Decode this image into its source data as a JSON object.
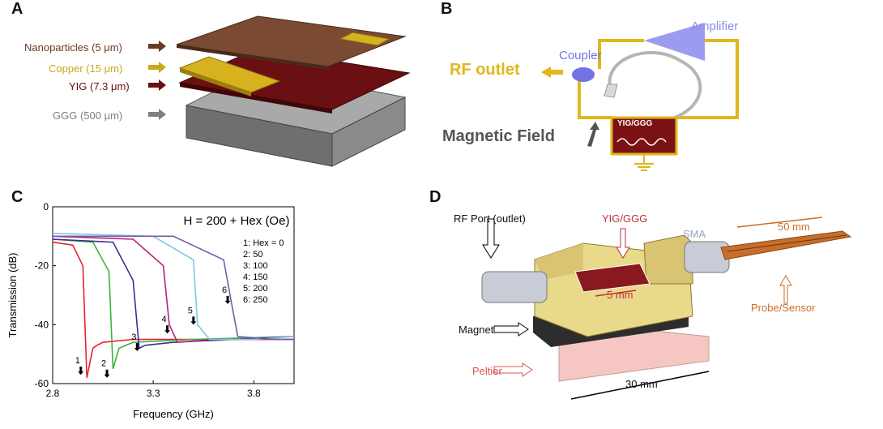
{
  "panels": {
    "a": {
      "label": "A"
    },
    "b": {
      "label": "B"
    },
    "c": {
      "label": "C"
    },
    "d": {
      "label": "D"
    }
  },
  "panel_a": {
    "layers": [
      {
        "text": "Nanoparticles (5 μm)",
        "color": "#6b3a24"
      },
      {
        "text": "Copper (15 μm)",
        "color": "#c9a81c"
      },
      {
        "text": "YIG (7.3 μm)",
        "color": "#6a0f12"
      },
      {
        "text": "GGG (500 μm)",
        "color": "#7f7f7f"
      }
    ]
  },
  "panel_b": {
    "amplifier": "Amplifier",
    "coupler": "Coupler",
    "rf_outlet": "RF outlet",
    "magnetic_field": "Magnetic Field",
    "yig_ggg": "YIG/GGG"
  },
  "panel_d": {
    "rf_port": "RF Port (outlet)",
    "yig_ggg": "YIG/GGG",
    "sma": "SMA",
    "length_50": "50 mm",
    "length_5": "5 mm",
    "length_30": "30 mm",
    "magnet": "Magnet",
    "peltier": "Peltier",
    "probe": "Probe/Sensor"
  },
  "chart_data": {
    "type": "line",
    "annotation": "H = 200 + Hex (Oe)",
    "xlabel": "Frequency (GHz)",
    "ylabel": "Transmission (dB)",
    "xlim": [
      2.8,
      4.0
    ],
    "ylim": [
      -60,
      0
    ],
    "xticks": [
      "2.8",
      "3.3",
      "3.8"
    ],
    "yticks": [
      "0",
      "-20",
      "-40",
      "-60"
    ],
    "legend": [
      "1: Hex = 0",
      "2: 50",
      "3: 100",
      "4: 150",
      "5: 200",
      "6: 250"
    ],
    "series": [
      {
        "name": "1",
        "color": "#e8202f",
        "x": [
          2.8,
          2.9,
          2.95,
          2.97,
          3.0,
          3.02,
          3.05,
          3.2,
          3.5,
          4.0
        ],
        "y": [
          -12,
          -13,
          -20,
          -58,
          -48,
          -47,
          -46,
          -45,
          -45,
          -45
        ]
      },
      {
        "name": "2",
        "color": "#3cb43c",
        "x": [
          2.8,
          3.0,
          3.08,
          3.1,
          3.13,
          3.2,
          3.5,
          4.0
        ],
        "y": [
          -11,
          -12,
          -22,
          -55,
          -48,
          -46,
          -45,
          -44
        ]
      },
      {
        "name": "3",
        "color": "#3a2f8f",
        "x": [
          2.8,
          3.1,
          3.2,
          3.23,
          3.26,
          3.4,
          3.7,
          4.0
        ],
        "y": [
          -11,
          -12,
          -25,
          -48,
          -47,
          -46,
          -45,
          -44
        ]
      },
      {
        "name": "4",
        "color": "#b8207a",
        "x": [
          2.8,
          3.2,
          3.35,
          3.38,
          3.42,
          3.6,
          4.0
        ],
        "y": [
          -10,
          -11,
          -20,
          -40,
          -46,
          -45,
          -45
        ]
      },
      {
        "name": "5",
        "color": "#7fc8e4",
        "x": [
          2.8,
          3.3,
          3.5,
          3.52,
          3.58,
          3.8,
          4.0
        ],
        "y": [
          -9,
          -10,
          -18,
          -40,
          -45,
          -45,
          -44
        ]
      },
      {
        "name": "6",
        "color": "#7a5aa8",
        "x": [
          2.8,
          3.4,
          3.65,
          3.69,
          3.72,
          3.9,
          4.0
        ],
        "y": [
          -10,
          -10,
          -18,
          -33,
          -44,
          -45,
          -45
        ]
      }
    ],
    "arrows": [
      {
        "label": "1",
        "x": 2.94,
        "y": -57
      },
      {
        "label": "2",
        "x": 3.07,
        "y": -58
      },
      {
        "label": "3",
        "x": 3.22,
        "y": -49
      },
      {
        "label": "4",
        "x": 3.37,
        "y": -43
      },
      {
        "label": "5",
        "x": 3.5,
        "y": -40
      },
      {
        "label": "6",
        "x": 3.67,
        "y": -33
      }
    ]
  }
}
